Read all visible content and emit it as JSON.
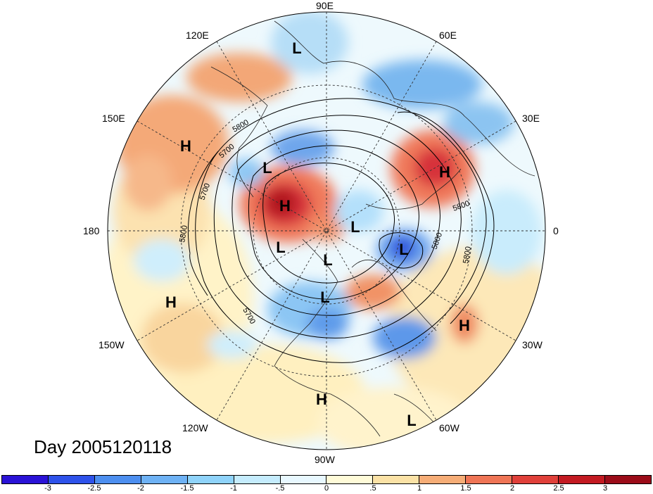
{
  "date_label": "Day 2005120118",
  "lon_labels": {
    "e90": "90E",
    "e120": "120E",
    "e60": "60E",
    "e150": "150E",
    "e30": "30E",
    "w180": "180",
    "zero": "0",
    "w150": "150W",
    "w30": "30W",
    "w120": "120W",
    "w60": "60W",
    "w90": "90W"
  },
  "centers": [
    {
      "id": "l-top",
      "label": "L"
    },
    {
      "id": "h-150e",
      "label": "H"
    },
    {
      "id": "l-nw",
      "label": "L"
    },
    {
      "id": "h-siberia",
      "label": "H"
    },
    {
      "id": "h-europe",
      "label": "H"
    },
    {
      "id": "l-arctic",
      "label": "L"
    },
    {
      "id": "l-greenland",
      "label": "L"
    },
    {
      "id": "l-atlantic-deep",
      "label": "L"
    },
    {
      "id": "l-center-2",
      "label": "L"
    },
    {
      "id": "l-canada",
      "label": "L"
    },
    {
      "id": "h-pacific",
      "label": "H"
    },
    {
      "id": "h-atlantic",
      "label": "H"
    },
    {
      "id": "h-mexico",
      "label": "H"
    },
    {
      "id": "l-samerica",
      "label": "L"
    }
  ],
  "contour_labels": [
    "5800",
    "5700",
    "5700",
    "5800",
    "5800",
    "5800",
    "5800",
    "5700"
  ],
  "colorbar": {
    "ticks": [
      "-3",
      "-2.5",
      "-2",
      "-1.5",
      "-1",
      "-.5",
      "0",
      ".5",
      "1",
      "1.5",
      "2",
      "2.5",
      "3"
    ],
    "colors": [
      "#2a12d6",
      "#2e52ea",
      "#4d8ff0",
      "#6eb2f5",
      "#8fd3fa",
      "#c5ecfd",
      "#e8f8ff",
      "#fffbd8",
      "#fbe2a6",
      "#f6ad77",
      "#ef7556",
      "#e0403a",
      "#c31a22",
      "#9b0c19"
    ]
  }
}
